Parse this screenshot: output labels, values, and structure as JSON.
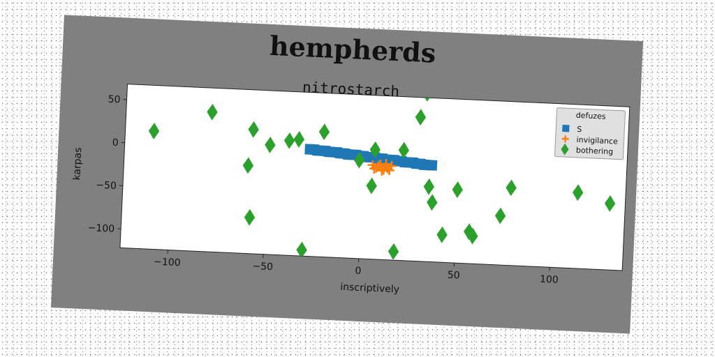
{
  "chart_data": {
    "type": "scatter",
    "suptitle": "hempherds",
    "title": "nitrostarch",
    "xlabel": "inscriptively",
    "ylabel": "karpas",
    "xlim": [
      -125,
      138
    ],
    "ylim": [
      -122,
      68
    ],
    "xticks": [
      -100,
      -50,
      0,
      50,
      100
    ],
    "yticks": [
      50,
      0,
      -50,
      -100
    ],
    "legend": {
      "title": "defuzes",
      "location": "top-right",
      "entries": [
        {
          "name": "S",
          "marker": "square",
          "color": "#1f77b4"
        },
        {
          "name": "invigilance",
          "marker": "plus",
          "color": "#ff7f0e"
        },
        {
          "name": "bothering",
          "marker": "diamond",
          "color": "#2ca02c"
        }
      ]
    },
    "series": [
      {
        "name": "S",
        "marker": "square",
        "color": "#1f77b4",
        "points": [
          [
            -28,
            2
          ],
          [
            -26,
            2
          ],
          [
            -24,
            1
          ],
          [
            -22,
            1
          ],
          [
            -20,
            1
          ],
          [
            -18,
            0
          ],
          [
            -16,
            0
          ],
          [
            -14,
            0
          ],
          [
            -12,
            -1
          ],
          [
            -10,
            -1
          ],
          [
            -8,
            -2
          ],
          [
            -6,
            -2
          ],
          [
            -4,
            -2
          ],
          [
            -2,
            -3
          ],
          [
            0,
            -3
          ],
          [
            2,
            -4
          ],
          [
            4,
            -4
          ],
          [
            6,
            -4
          ],
          [
            8,
            -5
          ],
          [
            10,
            -5
          ],
          [
            12,
            -6
          ],
          [
            14,
            -6
          ],
          [
            16,
            -6
          ],
          [
            18,
            -7
          ],
          [
            20,
            -7
          ],
          [
            22,
            -8
          ],
          [
            24,
            -8
          ],
          [
            26,
            -8
          ],
          [
            28,
            -9
          ],
          [
            30,
            -9
          ],
          [
            32,
            -10
          ],
          [
            34,
            -10
          ],
          [
            36,
            -10
          ]
        ]
      },
      {
        "name": "invigilance",
        "marker": "plus",
        "color": "#ff7f0e",
        "points": [
          [
            5,
            -13
          ],
          [
            7,
            -16
          ],
          [
            9,
            -12
          ],
          [
            11,
            -18
          ],
          [
            12,
            -14
          ],
          [
            13,
            -16
          ],
          [
            15,
            -13
          ],
          [
            10,
            -19
          ],
          [
            8,
            -14
          ],
          [
            14,
            -18
          ],
          [
            6,
            -17
          ],
          [
            12,
            -11
          ]
        ]
      },
      {
        "name": "bothering",
        "marker": "diamond",
        "color": "#2ca02c",
        "points": [
          [
            -110,
            15
          ],
          [
            -80,
            40
          ],
          [
            -58,
            22
          ],
          [
            -49,
            5
          ],
          [
            -39,
            11
          ],
          [
            -34,
            13
          ],
          [
            -21,
            23
          ],
          [
            -60,
            -20
          ],
          [
            -58,
            -80
          ],
          [
            -30,
            -115
          ],
          [
            -2,
            -8
          ],
          [
            6,
            5
          ],
          [
            5,
            -37
          ],
          [
            21,
            6
          ],
          [
            29,
            45
          ],
          [
            32,
            73
          ],
          [
            35,
            -35
          ],
          [
            37,
            -53
          ],
          [
            43,
            -90
          ],
          [
            44,
            -137
          ],
          [
            50,
            -37
          ],
          [
            57,
            -85
          ],
          [
            59,
            -90
          ],
          [
            73,
            -65
          ],
          [
            78,
            -32
          ],
          [
            113,
            -34
          ],
          [
            130,
            -45
          ],
          [
            18,
            -112
          ]
        ]
      }
    ]
  }
}
